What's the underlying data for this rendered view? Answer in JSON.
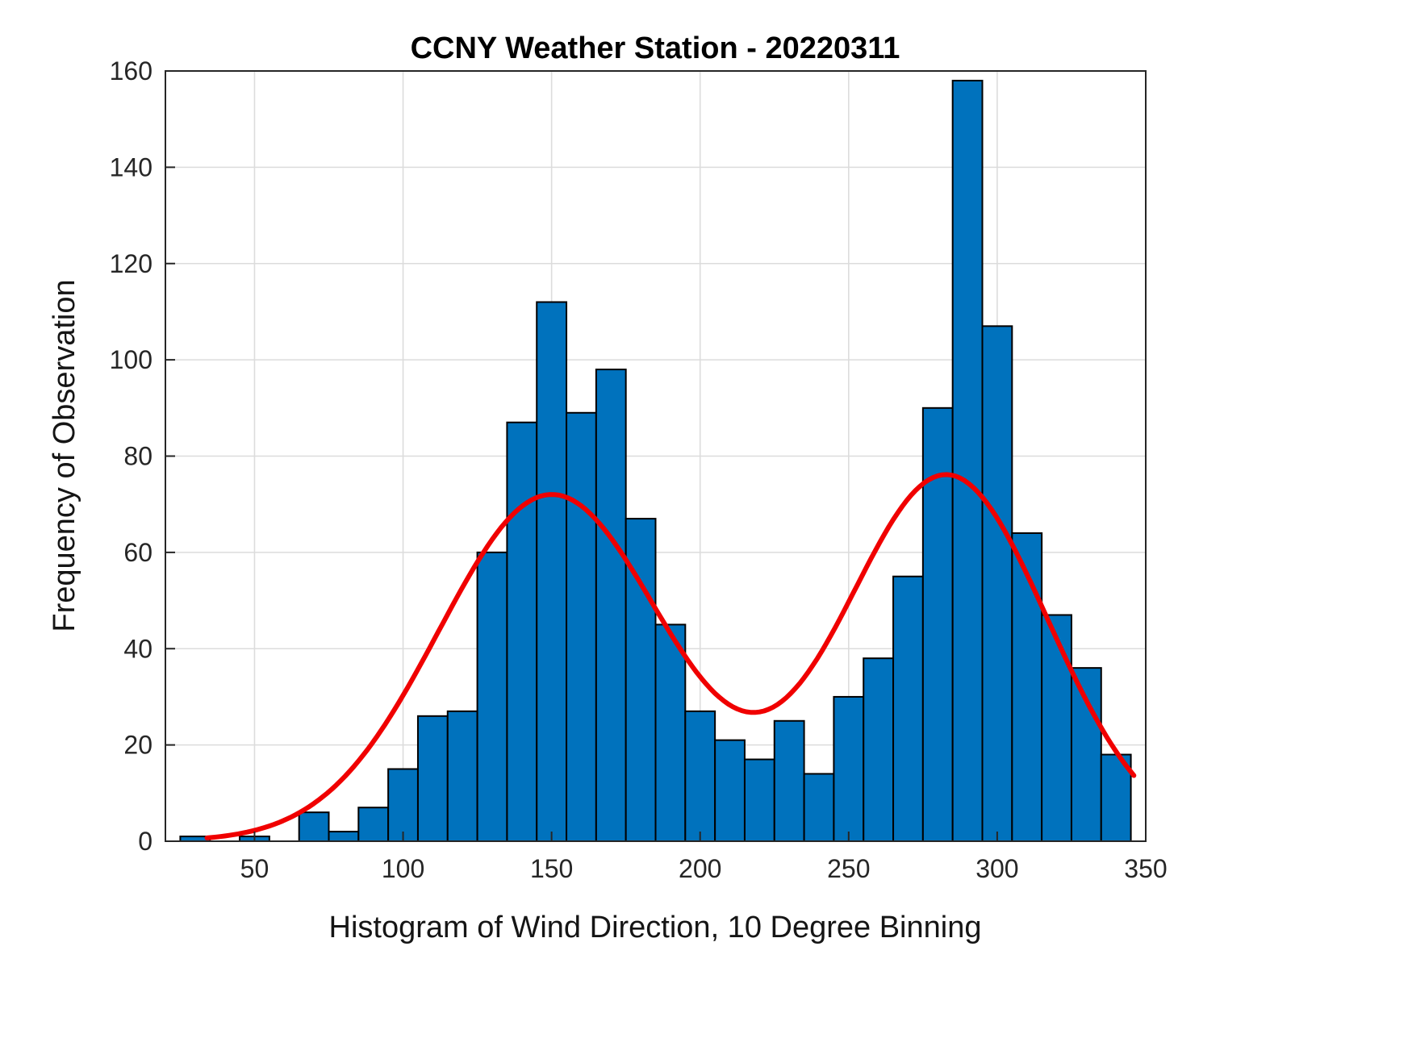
{
  "chart_data": {
    "type": "bar",
    "title": "CCNY Weather Station - 20220311",
    "xlabel": "Histogram of Wind Direction, 10 Degree Binning",
    "ylabel": "Frequency of Observation",
    "xlim": [
      20,
      350
    ],
    "ylim": [
      0,
      160
    ],
    "x_ticks": [
      50,
      100,
      150,
      200,
      250,
      300,
      350
    ],
    "y_ticks": [
      0,
      20,
      40,
      60,
      80,
      100,
      120,
      140,
      160
    ],
    "grid": true,
    "legend": "none",
    "bar_color": "#0072BD",
    "bar_edge_color": "#000000",
    "bins": {
      "start": 25,
      "width": 10,
      "count": 32
    },
    "frequencies": [
      1,
      0,
      1,
      0,
      6,
      2,
      7,
      15,
      26,
      27,
      60,
      87,
      112,
      89,
      98,
      67,
      45,
      27,
      21,
      17,
      25,
      14,
      30,
      38,
      55,
      90,
      158,
      107,
      64,
      47,
      36,
      18
    ],
    "fit_curve": {
      "type": "sum_of_two_gaussians",
      "color": "#F00000",
      "line_width": 6,
      "x_start": 34,
      "x_end": 347,
      "peak1_value": 73,
      "peak2_value": 77,
      "trough_value": 30,
      "components": [
        {
          "amplitude": 72,
          "mean": 150,
          "sigma": 38
        },
        {
          "amplitude": 76,
          "mean": 283,
          "sigma": 34
        }
      ]
    }
  }
}
